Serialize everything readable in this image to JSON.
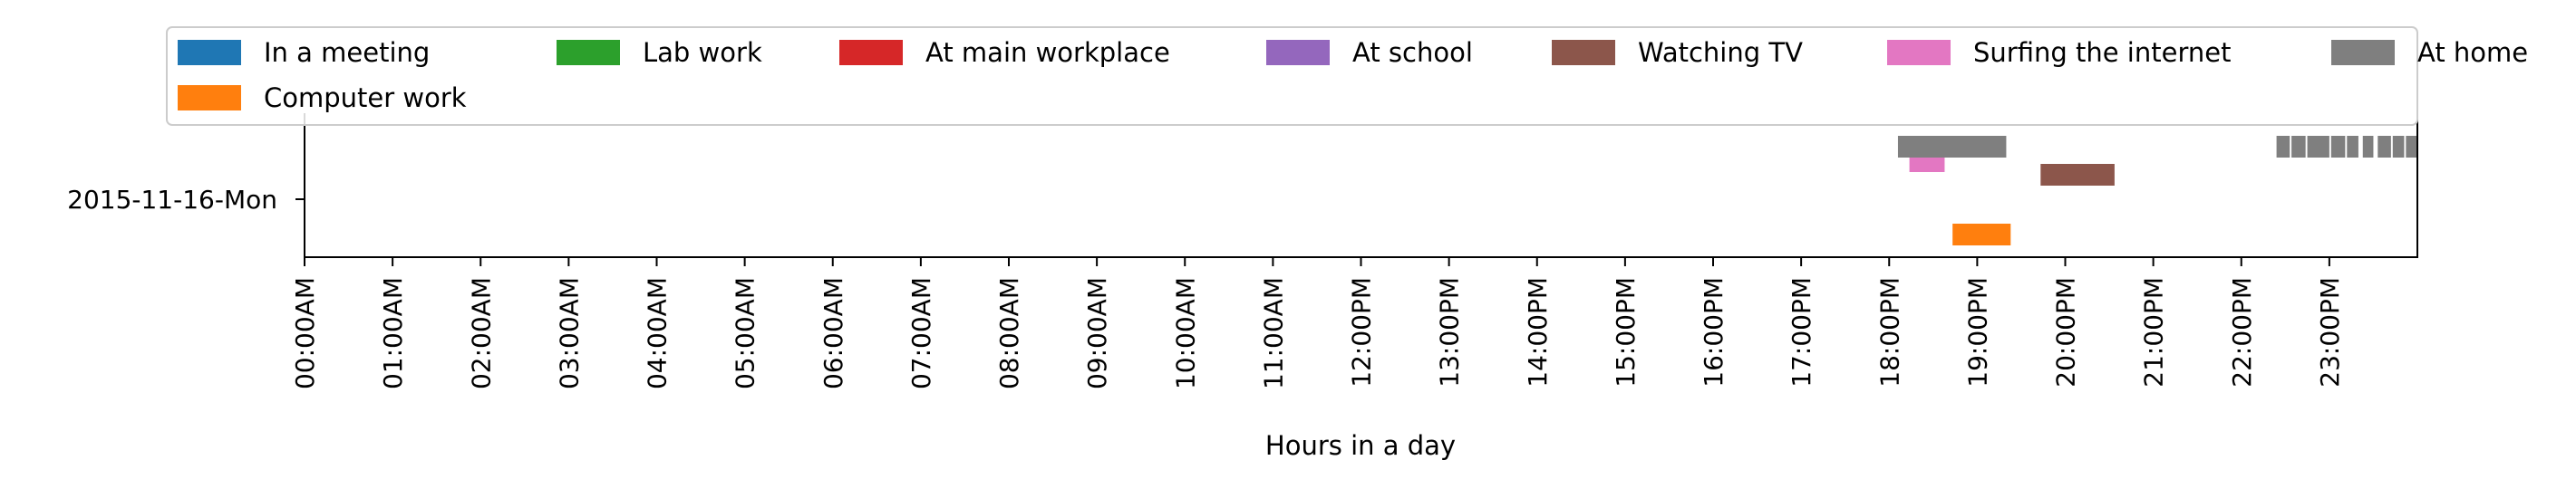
{
  "chart_data": {
    "type": "timeline",
    "xlabel": "Hours in a day",
    "ylabel": "",
    "x_range_hours": [
      0,
      24
    ],
    "x_ticks": [
      "00:00AM",
      "01:00AM",
      "02:00AM",
      "03:00AM",
      "04:00AM",
      "05:00AM",
      "06:00AM",
      "07:00AM",
      "08:00AM",
      "09:00AM",
      "10:00AM",
      "11:00AM",
      "12:00PM",
      "13:00PM",
      "14:00PM",
      "15:00PM",
      "16:00PM",
      "17:00PM",
      "18:00PM",
      "19:00PM",
      "20:00PM",
      "21:00PM",
      "22:00PM",
      "23:00PM"
    ],
    "y_categories": [
      "2015-11-16-Mon"
    ],
    "legend_position": "top",
    "grid": false,
    "series": [
      {
        "name": "In a meeting",
        "color": "#1f77b4",
        "intervals": []
      },
      {
        "name": "Computer work",
        "color": "#ff7f0e",
        "intervals": [
          [
            18.72,
            19.38
          ]
        ]
      },
      {
        "name": "Lab work",
        "color": "#2ca02c",
        "intervals": []
      },
      {
        "name": "At main workplace",
        "color": "#d62728",
        "intervals": []
      },
      {
        "name": "At school",
        "color": "#9467bd",
        "intervals": []
      },
      {
        "name": "Watching TV",
        "color": "#8c564b",
        "intervals": [
          [
            19.72,
            20.56
          ]
        ]
      },
      {
        "name": "Surfing the internet",
        "color": "#e377c2",
        "intervals": [
          [
            18.23,
            18.63
          ]
        ]
      },
      {
        "name": "At home",
        "color": "#7f7f7f",
        "intervals": [
          [
            18.1,
            19.33
          ],
          [
            22.4,
            22.55
          ],
          [
            22.57,
            22.73
          ],
          [
            22.75,
            23.0
          ],
          [
            23.02,
            23.18
          ],
          [
            23.2,
            23.33
          ],
          [
            23.38,
            23.5
          ],
          [
            23.55,
            23.7
          ],
          [
            23.72,
            23.85
          ],
          [
            23.87,
            24.0
          ]
        ]
      }
    ]
  }
}
